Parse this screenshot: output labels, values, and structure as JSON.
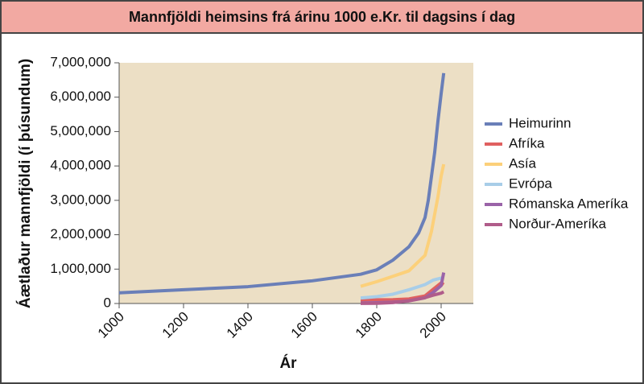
{
  "chart_data": {
    "type": "line",
    "title": "Mannfjöldi heimsins frá árinu 1000 e.Kr. til dagsins í dag",
    "x_label": "Ár",
    "y_label": "Áætlaður mannfjöldi (í þúsundum)",
    "xlim": [
      1000,
      2100
    ],
    "xticks": [
      1000,
      1200,
      1400,
      1600,
      1800,
      2000
    ],
    "ylim": [
      0,
      7000000
    ],
    "yticks": [
      0,
      {
        "value": 1000000,
        "label": "1,000,000"
      },
      {
        "value": 2000000,
        "label": "2,000,000"
      },
      {
        "value": 3000000,
        "label": "3,000,000"
      },
      {
        "value": 4000000,
        "label": "4,000,000"
      },
      {
        "value": 5000000,
        "label": "5,000,000"
      },
      {
        "value": 6000000,
        "label": "6,000,000"
      },
      {
        "value": 7000000,
        "label": "7,000,000"
      }
    ],
    "series": [
      {
        "name": "Heimurinn",
        "color": "#6a7fb8",
        "x": [
          1000,
          1200,
          1400,
          1600,
          1750,
          1800,
          1850,
          1900,
          1930,
          1950,
          1960,
          1970,
          1980,
          1990,
          2000,
          2008
        ],
        "values": [
          310000,
          400000,
          490000,
          660000,
          850000,
          980000,
          1260000,
          1650000,
          2050000,
          2500000,
          3000000,
          3700000,
          4400000,
          5300000,
          6100000,
          6700000
        ]
      },
      {
        "name": "Afríka",
        "color": "#e06060",
        "x": [
          1750,
          1800,
          1850,
          1900,
          1950,
          1975,
          2000,
          2008
        ],
        "values": [
          106000,
          107000,
          111000,
          133000,
          221000,
          410000,
          600000,
          550000
        ]
      },
      {
        "name": "Asía",
        "color": "#fcd07a",
        "x": [
          1750,
          1800,
          1850,
          1900,
          1950,
          1970,
          1980,
          1990,
          2000,
          2008
        ],
        "values": [
          500000,
          635000,
          790000,
          950000,
          1400000,
          2100000,
          2600000,
          3100000,
          3700000,
          4050000
        ]
      },
      {
        "name": "Evrópa",
        "color": "#a8cde8",
        "x": [
          1750,
          1800,
          1850,
          1900,
          1950,
          1975,
          2000,
          2008
        ],
        "values": [
          160000,
          200000,
          270000,
          400000,
          550000,
          680000,
          740000,
          730000
        ]
      },
      {
        "name": "Rómanska Ameríka",
        "color": "#9a63a8",
        "x": [
          1750,
          1800,
          1850,
          1900,
          1950,
          1975,
          2000,
          2008
        ],
        "values": [
          16000,
          24000,
          38000,
          74000,
          167000,
          320000,
          520000,
          900000
        ]
      },
      {
        "name": "Norður-Ameríka",
        "color": "#b05c8a",
        "x": [
          1750,
          1800,
          1850,
          1900,
          1950,
          1975,
          2000,
          2008
        ],
        "values": [
          2000,
          7000,
          26000,
          82000,
          172000,
          240000,
          300000,
          340000
        ]
      }
    ]
  }
}
